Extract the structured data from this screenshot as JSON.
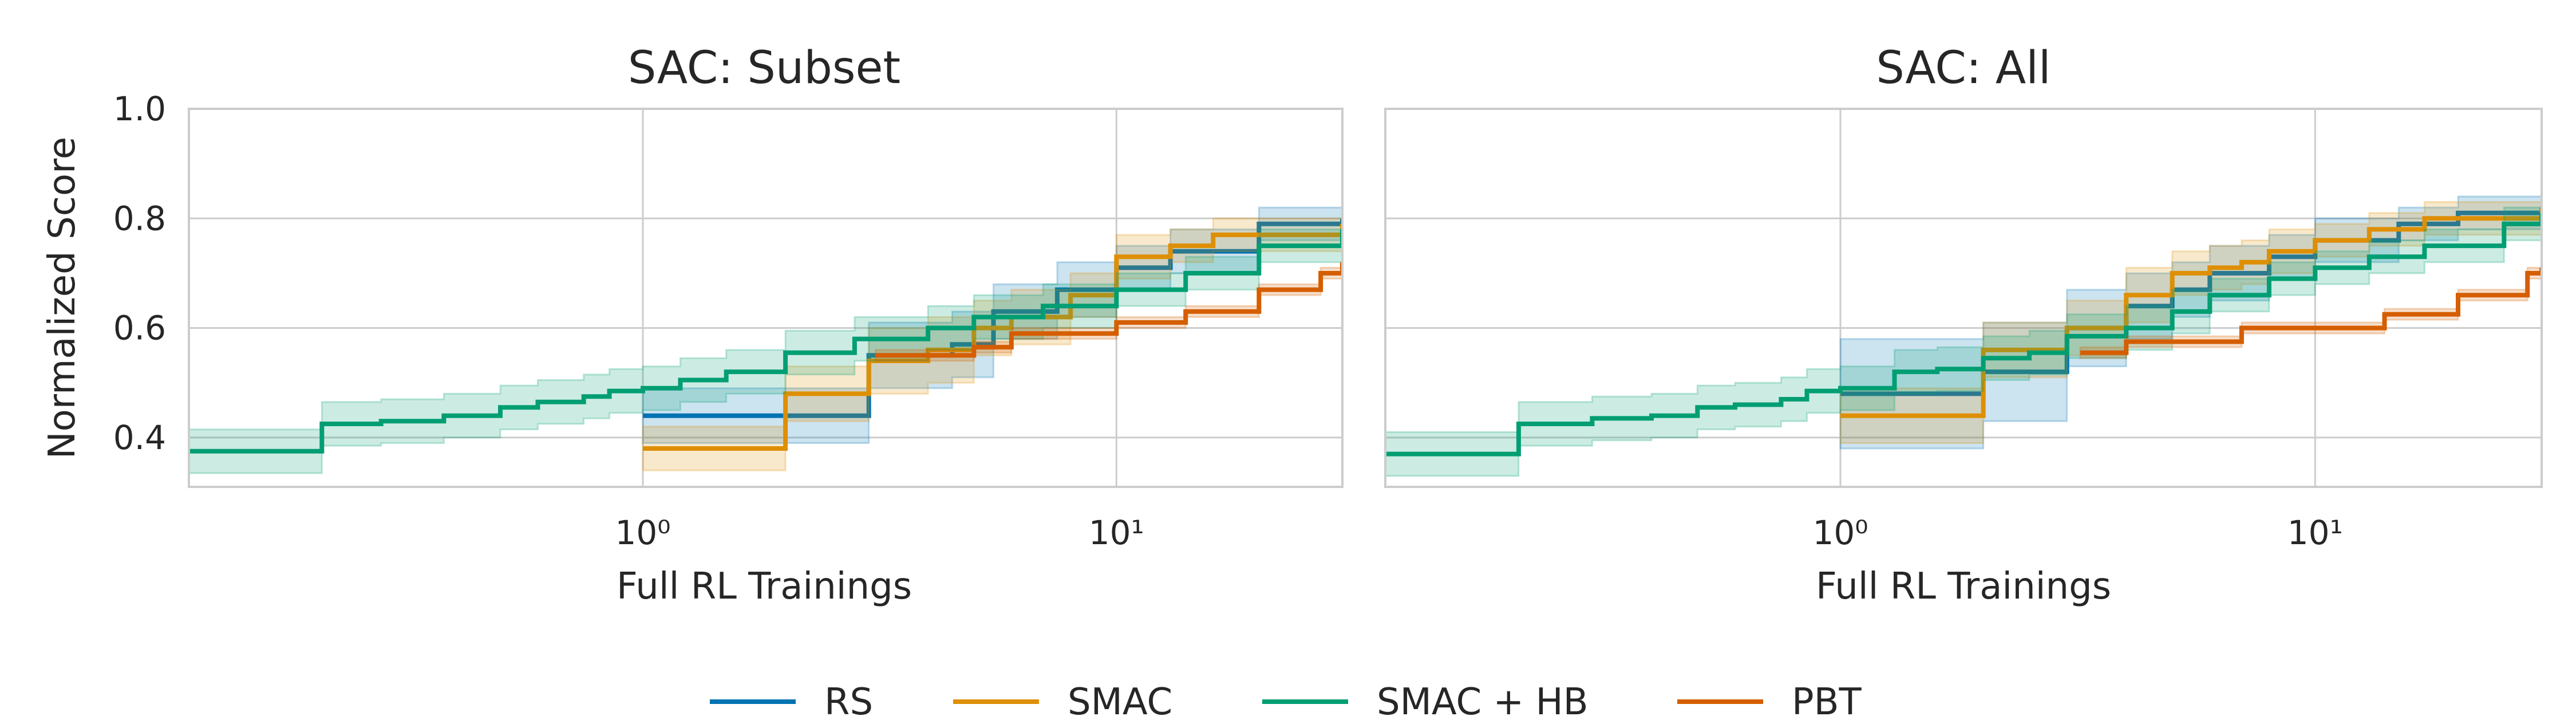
{
  "chart_data": [
    {
      "type": "line",
      "title": "SAC: Subset",
      "xlabel": "Full RL Trainings",
      "ylabel": "Normalized Score",
      "xscale": "log",
      "xlim": [
        0.11,
        30
      ],
      "ylim": [
        0.31,
        1.0
      ],
      "yticks": [
        0.4,
        0.6,
        0.8,
        1.0
      ],
      "ytick_labels": [
        "0.4",
        "0.6",
        "0.8",
        "1.0"
      ],
      "xticks": [
        1,
        10
      ],
      "xtick_labels": [
        "10⁰",
        "10¹"
      ],
      "grid": true,
      "series": [
        {
          "name": "RS",
          "x": [
            1,
            2,
            3,
            4.5,
            5.5,
            7.5,
            10,
            13,
            20,
            30
          ],
          "y": [
            0.44,
            0.44,
            0.55,
            0.57,
            0.63,
            0.67,
            0.71,
            0.74,
            0.79,
            0.8
          ],
          "band": [
            0.05,
            0.05,
            0.06,
            0.06,
            0.05,
            0.05,
            0.04,
            0.04,
            0.03,
            0.03
          ]
        },
        {
          "name": "SMAC",
          "x": [
            1,
            2,
            3,
            4,
            5,
            6,
            8,
            10,
            13,
            16,
            30
          ],
          "y": [
            0.38,
            0.48,
            0.54,
            0.56,
            0.6,
            0.62,
            0.66,
            0.73,
            0.75,
            0.77,
            0.79
          ],
          "band": [
            0.04,
            0.05,
            0.06,
            0.06,
            0.05,
            0.05,
            0.04,
            0.04,
            0.03,
            0.03,
            0.03
          ]
        },
        {
          "name": "SMAC + HB",
          "x": [
            0.11,
            0.21,
            0.28,
            0.38,
            0.5,
            0.6,
            0.75,
            0.85,
            1,
            1.2,
            1.5,
            2,
            2.8,
            4,
            5,
            7,
            10,
            14,
            20,
            30
          ],
          "y": [
            0.375,
            0.425,
            0.43,
            0.44,
            0.455,
            0.465,
            0.475,
            0.485,
            0.49,
            0.505,
            0.52,
            0.555,
            0.58,
            0.6,
            0.62,
            0.64,
            0.67,
            0.7,
            0.75,
            0.78
          ],
          "band": [
            0.04,
            0.04,
            0.04,
            0.04,
            0.04,
            0.04,
            0.04,
            0.04,
            0.04,
            0.04,
            0.04,
            0.04,
            0.04,
            0.04,
            0.04,
            0.04,
            0.03,
            0.03,
            0.03,
            0.03
          ]
        },
        {
          "name": "PBT",
          "x": [
            3.1,
            5,
            6,
            10,
            14,
            20,
            27,
            30
          ],
          "y": [
            0.55,
            0.565,
            0.59,
            0.61,
            0.63,
            0.67,
            0.7,
            0.72
          ],
          "band": [
            0.01,
            0.01,
            0.01,
            0.01,
            0.01,
            0.01,
            0.01,
            0.01
          ]
        }
      ]
    },
    {
      "type": "line",
      "title": "SAC: All",
      "xlabel": "Full RL Trainings",
      "ylabel": "",
      "xscale": "log",
      "xlim": [
        0.11,
        30
      ],
      "ylim": [
        0.31,
        1.0
      ],
      "yticks": [
        0.4,
        0.6,
        0.8,
        1.0
      ],
      "xticks": [
        1,
        10
      ],
      "xtick_labels": [
        "10⁰",
        "10¹"
      ],
      "grid": true,
      "series": [
        {
          "name": "RS",
          "x": [
            1,
            2,
            3,
            4,
            5,
            6,
            8,
            10,
            15,
            20,
            30
          ],
          "y": [
            0.48,
            0.52,
            0.6,
            0.64,
            0.67,
            0.7,
            0.73,
            0.76,
            0.79,
            0.81,
            0.82
          ],
          "band": [
            0.1,
            0.09,
            0.07,
            0.06,
            0.05,
            0.05,
            0.04,
            0.04,
            0.03,
            0.03,
            0.03
          ]
        },
        {
          "name": "SMAC",
          "x": [
            1,
            2,
            3,
            4,
            5,
            6,
            7,
            8,
            10,
            13,
            17,
            30
          ],
          "y": [
            0.44,
            0.56,
            0.6,
            0.66,
            0.7,
            0.71,
            0.72,
            0.74,
            0.76,
            0.78,
            0.8,
            0.82
          ],
          "band": [
            0.05,
            0.05,
            0.05,
            0.05,
            0.04,
            0.04,
            0.04,
            0.04,
            0.03,
            0.03,
            0.03,
            0.03
          ]
        },
        {
          "name": "SMAC + HB",
          "x": [
            0.11,
            0.21,
            0.3,
            0.4,
            0.5,
            0.6,
            0.75,
            0.85,
            1,
            1.3,
            1.6,
            2,
            2.5,
            3,
            4,
            5,
            6,
            8,
            10,
            13,
            17,
            25,
            30
          ],
          "y": [
            0.37,
            0.425,
            0.435,
            0.44,
            0.455,
            0.46,
            0.47,
            0.485,
            0.49,
            0.52,
            0.525,
            0.545,
            0.555,
            0.585,
            0.6,
            0.63,
            0.66,
            0.69,
            0.71,
            0.73,
            0.75,
            0.79,
            0.81
          ],
          "band": [
            0.04,
            0.04,
            0.04,
            0.04,
            0.04,
            0.04,
            0.04,
            0.04,
            0.04,
            0.04,
            0.04,
            0.04,
            0.04,
            0.04,
            0.04,
            0.04,
            0.03,
            0.03,
            0.03,
            0.03,
            0.03,
            0.03,
            0.03
          ]
        },
        {
          "name": "PBT",
          "x": [
            3.2,
            4,
            7,
            14,
            20,
            28,
            30
          ],
          "y": [
            0.555,
            0.575,
            0.6,
            0.625,
            0.66,
            0.7,
            0.71
          ],
          "band": [
            0.01,
            0.01,
            0.01,
            0.01,
            0.01,
            0.01,
            0.01
          ]
        }
      ]
    }
  ],
  "legend": {
    "placement": "bottom-center",
    "items": [
      {
        "label": "RS",
        "color": "#0173b2"
      },
      {
        "label": "SMAC",
        "color": "#de8f05"
      },
      {
        "label": "SMAC + HB",
        "color": "#029e73"
      },
      {
        "label": "PBT",
        "color": "#d55e00"
      }
    ]
  },
  "colors": {
    "RS": "#0173b2",
    "SMAC": "#de8f05",
    "SMAC + HB": "#029e73",
    "PBT": "#d55e00",
    "grid": "#cccccc",
    "axis": "#cccccc",
    "text": "#262626"
  }
}
